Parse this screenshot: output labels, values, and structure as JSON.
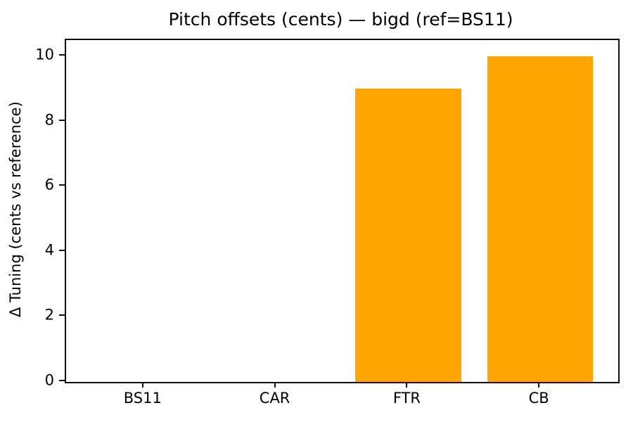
{
  "chart_data": {
    "type": "bar",
    "title": "Pitch offsets (cents) — bigd (ref=BS11)",
    "xlabel": "",
    "ylabel": "Δ Tuning (cents vs reference)",
    "categories": [
      "BS11",
      "CAR",
      "FTR",
      "CB"
    ],
    "values": [
      0,
      0,
      9,
      10
    ],
    "yticks": [
      0,
      2,
      4,
      6,
      8,
      10
    ],
    "ylim": [
      0,
      10.5
    ],
    "bar_color": "#FFA500",
    "bar_width_fraction": 0.8,
    "grid": false,
    "legend": null,
    "spine_color": "#0f0f0f",
    "background_color": "#ffffff"
  }
}
